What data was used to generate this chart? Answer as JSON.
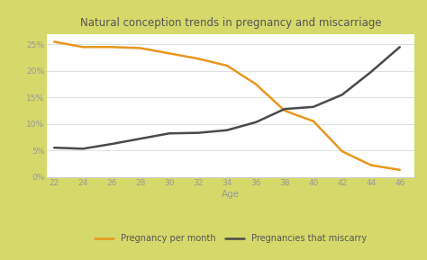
{
  "title": "Natural conception trends in pregnancy and miscarriage",
  "xlabel": "Age",
  "x": [
    22,
    24,
    26,
    28,
    30,
    32,
    34,
    36,
    38,
    40,
    42,
    44,
    46
  ],
  "pregnancy_per_month": [
    0.255,
    0.245,
    0.245,
    0.243,
    0.233,
    0.223,
    0.21,
    0.175,
    0.125,
    0.105,
    0.048,
    0.022,
    0.013
  ],
  "miscarry": [
    0.055,
    0.053,
    0.062,
    0.072,
    0.082,
    0.083,
    0.088,
    0.103,
    0.128,
    0.132,
    0.155,
    0.198,
    0.245
  ],
  "pregnancy_color": "#e8971e",
  "miscarry_color": "#4a4a4a",
  "outer_bg_color": "#d4d96a",
  "plot_bg_color": "#ffffff",
  "grid_color": "#d8ddd8",
  "title_color": "#555555",
  "tick_color": "#999999",
  "ylabel_ticks": [
    0.0,
    0.05,
    0.1,
    0.15,
    0.2,
    0.25
  ],
  "ylabel_labels": [
    "0%",
    "5%",
    "10%",
    "15%",
    "20%",
    "25%"
  ],
  "ylim": [
    0,
    0.27
  ],
  "xlim": [
    21.5,
    47
  ],
  "legend_pregnancy": "Pregnancy per month",
  "legend_miscarry": "Pregnancies that miscarry"
}
